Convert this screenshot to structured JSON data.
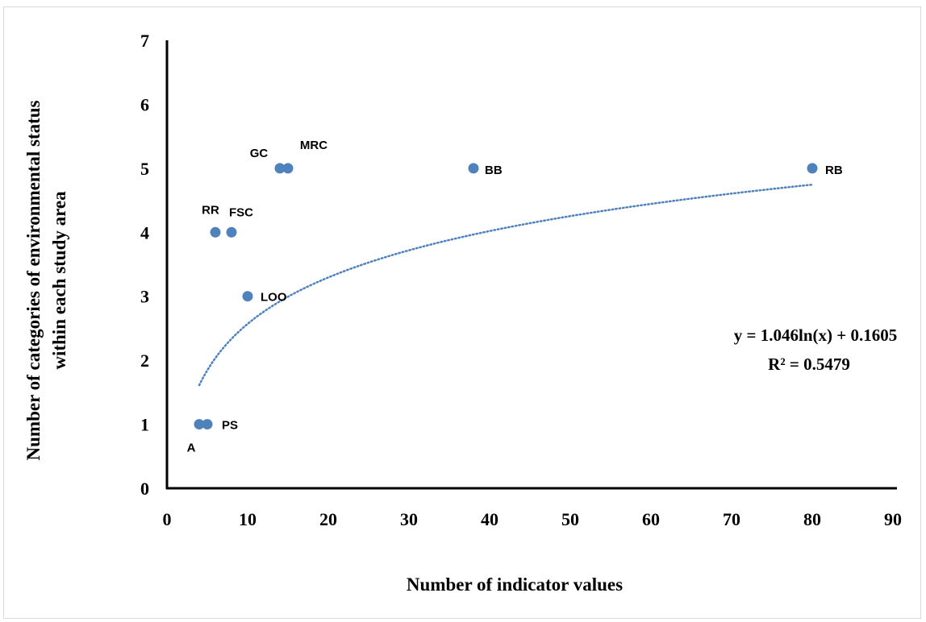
{
  "chart_data": {
    "type": "scatter",
    "title": "",
    "xlabel": "Number of indicator values",
    "ylabel_lines": [
      "Number of categories of environmental status",
      "within each study area"
    ],
    "xlim": [
      0,
      90
    ],
    "ylim": [
      0,
      7
    ],
    "xticks": [
      "0",
      "10",
      "20",
      "30",
      "40",
      "50",
      "60",
      "70",
      "80",
      "90"
    ],
    "yticks": [
      "0",
      "1",
      "2",
      "3",
      "4",
      "5",
      "6",
      "7"
    ],
    "grid": false,
    "marker_color": "#4f81bd",
    "points": [
      {
        "label": "A",
        "x": 4,
        "y": 1
      },
      {
        "label": "PS",
        "x": 5,
        "y": 1
      },
      {
        "label": "RR",
        "x": 6,
        "y": 4
      },
      {
        "label": "FSC",
        "x": 8,
        "y": 4
      },
      {
        "label": "LOO",
        "x": 10,
        "y": 3
      },
      {
        "label": "GC",
        "x": 14,
        "y": 5
      },
      {
        "label": "MRC",
        "x": 15,
        "y": 5
      },
      {
        "label": "BB",
        "x": 38,
        "y": 5
      },
      {
        "label": "RB",
        "x": 80,
        "y": 5
      }
    ],
    "trendline": {
      "type": "logarithmic",
      "a": 1.046,
      "b": 0.1605,
      "x_range": [
        4,
        80
      ],
      "style": "dotted",
      "color": "#4f81bd",
      "equation": "y = 1.046ln(x) + 0.1605",
      "r_squared": "R² = 0.5479"
    }
  }
}
